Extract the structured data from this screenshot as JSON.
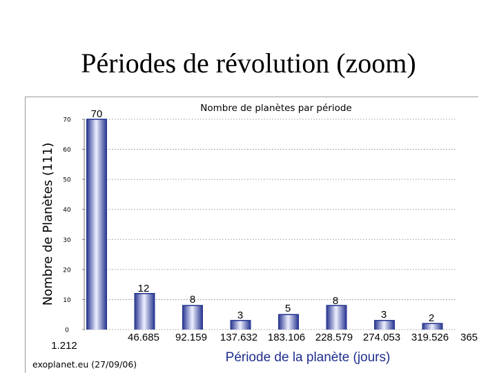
{
  "slide": {
    "title": "Périodes de révolution (zoom)"
  },
  "chart_data": {
    "type": "bar",
    "title": "Nombre de planètes par période",
    "ylabel": "Nombre de Planètes (111)",
    "xlabel": "Période de la planète (jours)",
    "source": "exoplanet.eu (27/09/06)",
    "x_tick_labels": [
      "1.212",
      "46.685",
      "92.159",
      "137.632",
      "183.106",
      "228.579",
      "274.053",
      "319.526",
      "365"
    ],
    "values": [
      70,
      12,
      8,
      3,
      5,
      8,
      3,
      2
    ],
    "data_labels": [
      "70",
      "12",
      "8",
      "3",
      "5",
      "8",
      "3",
      "2"
    ],
    "y_ticks": [
      0,
      10,
      20,
      30,
      40,
      50,
      60,
      70
    ],
    "ylim": [
      0,
      70
    ],
    "grid": true,
    "bar_color": "#1f2e8c",
    "bar_highlight_color": "#eef0ff"
  }
}
